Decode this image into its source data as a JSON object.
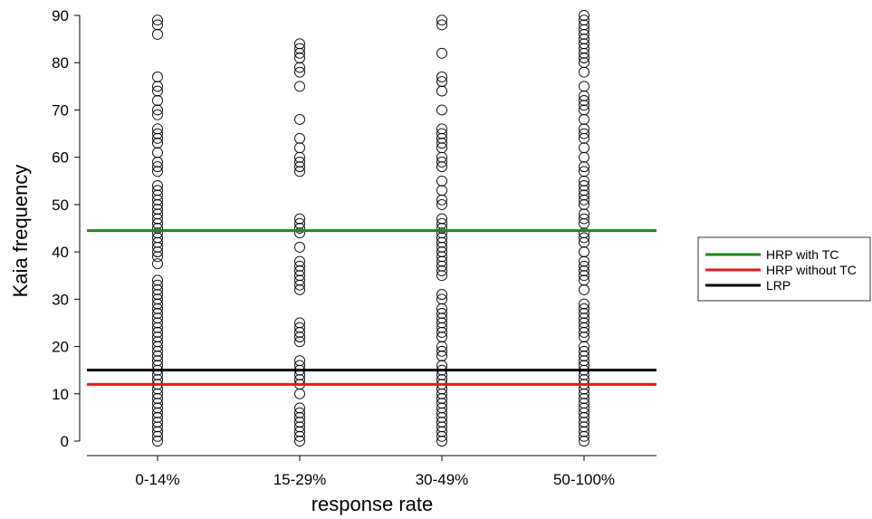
{
  "chart_data": {
    "type": "scatter",
    "title": "",
    "xlabel": "response rate",
    "ylabel": "Kaia frequency",
    "categories": [
      "0-14%",
      "15-29%",
      "30-49%",
      "50-100%"
    ],
    "ylim": [
      0,
      90
    ],
    "yticks": [
      0,
      10,
      20,
      30,
      40,
      50,
      60,
      70,
      80,
      90
    ],
    "grid": false,
    "legend_position": "right",
    "points": [
      [
        0,
        1,
        2,
        3,
        4,
        5,
        6,
        7,
        8,
        9,
        10,
        11,
        12,
        13,
        14,
        15,
        16,
        17,
        18,
        19,
        20,
        21,
        22,
        23,
        24,
        25,
        26,
        27,
        28,
        29,
        30,
        31,
        32,
        33,
        34,
        37.5,
        39,
        40,
        41,
        42,
        43,
        44,
        45,
        46,
        47,
        48,
        49,
        50,
        51,
        52,
        53,
        54,
        57,
        58,
        59,
        61,
        63,
        64,
        65,
        66,
        69,
        70,
        72,
        74,
        75,
        77,
        86,
        88,
        89
      ],
      [
        0,
        1,
        2,
        3,
        4,
        5,
        6,
        7,
        10,
        12,
        13,
        14,
        15,
        16,
        17,
        21,
        22,
        23,
        24,
        25,
        32,
        33,
        34,
        35,
        36,
        37,
        38,
        41,
        44,
        45,
        46,
        47,
        57,
        58,
        59,
        60,
        62,
        64,
        68,
        75,
        78,
        79,
        81,
        82,
        83,
        84
      ],
      [
        0,
        1,
        2,
        3,
        4,
        5,
        6,
        7,
        8,
        9,
        10,
        11,
        12,
        13,
        14,
        15,
        16,
        18,
        19,
        20,
        22,
        23,
        24,
        25,
        26,
        27,
        28,
        30,
        31,
        35,
        36,
        37,
        38,
        39,
        40,
        41,
        42,
        43,
        44,
        45,
        46,
        47,
        50,
        51,
        53,
        55,
        58,
        59,
        60,
        62,
        63,
        64,
        65,
        66,
        70,
        74,
        76,
        77,
        82,
        88,
        89
      ],
      [
        0,
        1,
        2,
        3,
        4,
        5,
        6,
        7,
        8,
        9,
        10,
        11,
        12,
        13,
        14,
        15,
        16,
        17,
        18,
        19,
        20,
        22,
        23,
        24,
        25,
        26,
        27,
        28,
        29,
        32,
        34,
        35,
        36,
        37,
        38,
        40,
        42,
        43,
        44,
        46,
        47,
        48,
        50,
        51,
        52,
        53,
        54,
        55,
        57,
        58,
        60,
        62,
        64,
        65,
        66,
        68,
        70,
        71,
        72,
        73,
        75,
        78,
        80,
        81,
        82,
        83,
        84,
        85,
        86,
        87,
        88,
        89,
        90
      ]
    ],
    "reference_lines": [
      {
        "name": "HRP with TC",
        "value": 44.5,
        "color": "#1a8a1a"
      },
      {
        "name": "HRP without TC",
        "value": 12,
        "color": "#e31a1c"
      },
      {
        "name": "LRP",
        "value": 15,
        "color": "#000000"
      }
    ]
  }
}
